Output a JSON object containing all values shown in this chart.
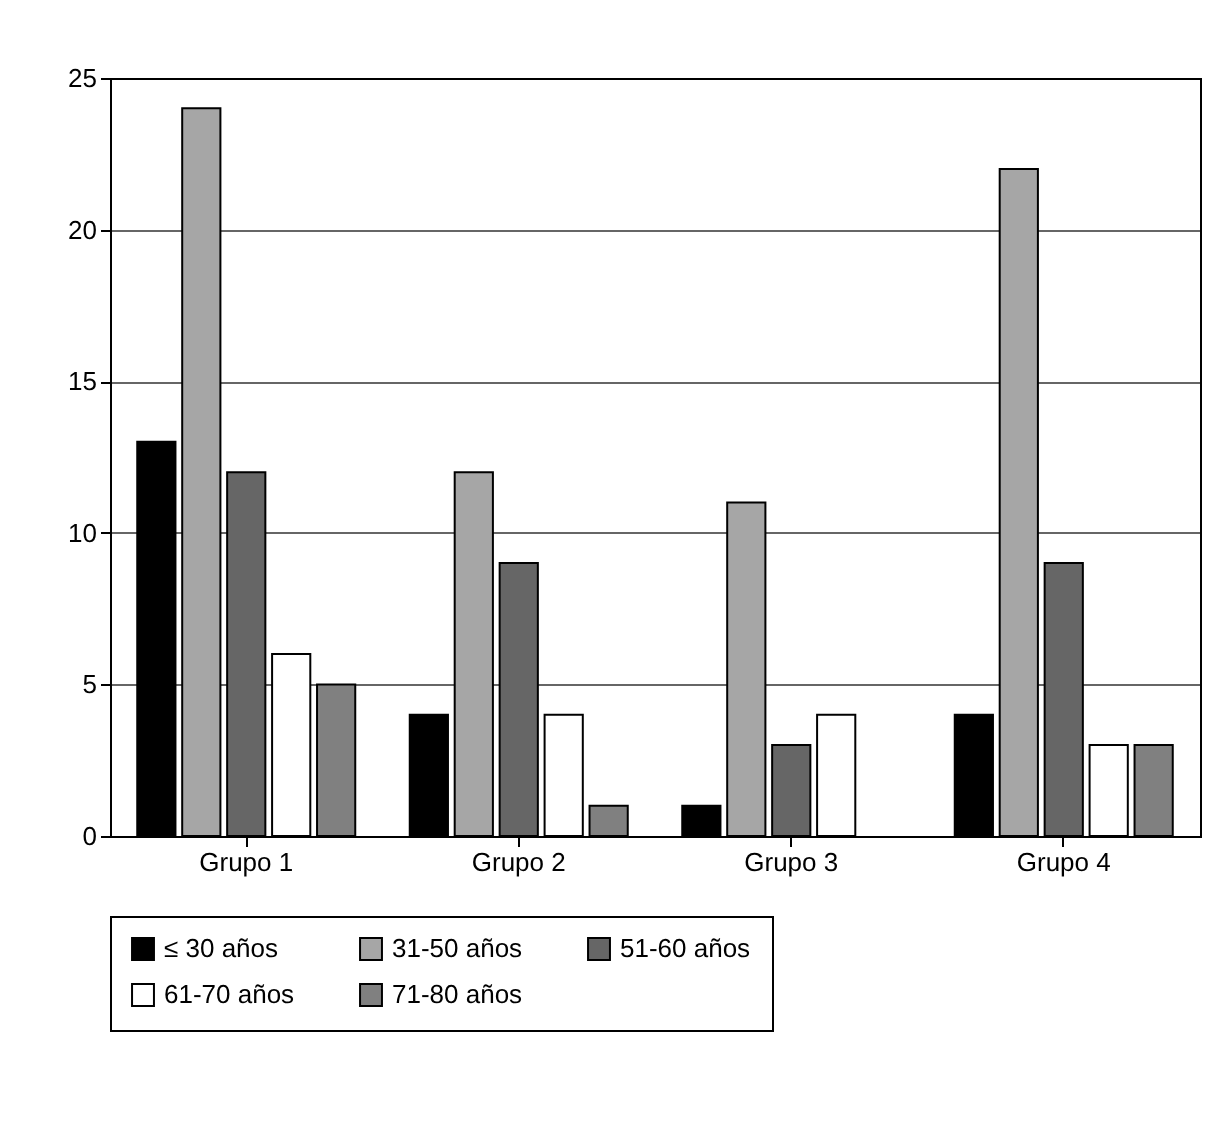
{
  "chart_data": {
    "type": "bar",
    "categories": [
      "Grupo 1",
      "Grupo 2",
      "Grupo 3",
      "Grupo 4"
    ],
    "series": [
      {
        "name": "≤ 30 años",
        "color": "#000000",
        "values": [
          13,
          4,
          1,
          4
        ]
      },
      {
        "name": "31-50 años",
        "color": "#a6a6a6",
        "values": [
          24,
          12,
          11,
          22
        ]
      },
      {
        "name": "51-60 años",
        "color": "#666666",
        "values": [
          12,
          9,
          3,
          9
        ]
      },
      {
        "name": "61-70 años",
        "color": "#ffffff",
        "values": [
          6,
          4,
          4,
          3
        ]
      },
      {
        "name": "71-80 años",
        "color": "#808080",
        "values": [
          5,
          1,
          null,
          3
        ]
      }
    ],
    "ylim": [
      0,
      25
    ],
    "yticks": [
      0,
      5,
      10,
      15,
      20,
      25
    ],
    "grid": "y",
    "legend": "bottom"
  }
}
